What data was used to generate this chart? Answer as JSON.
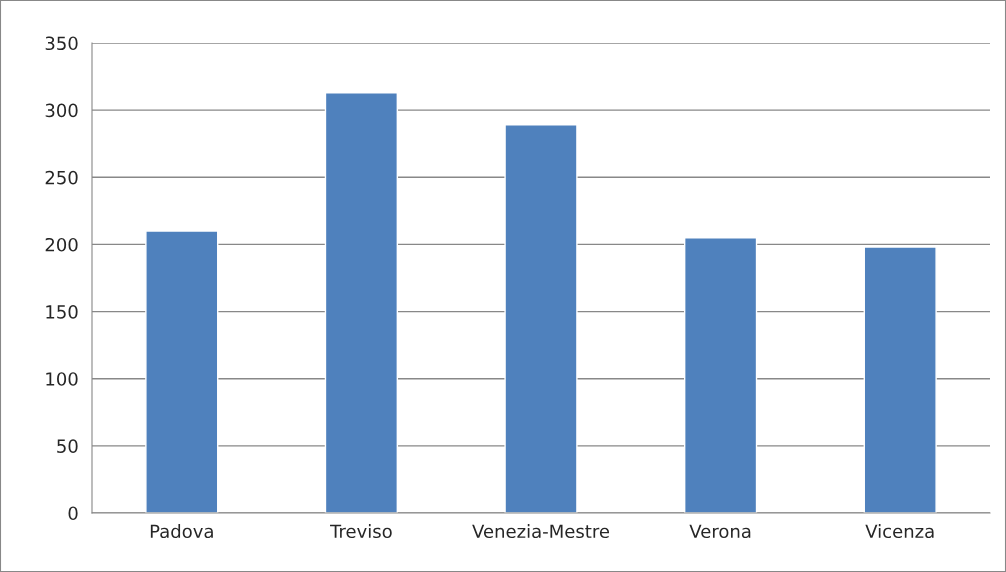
{
  "chart_data": {
    "type": "bar",
    "categories": [
      "Padova",
      "Treviso",
      "Venezia-Mestre",
      "Verona",
      "Vicenza"
    ],
    "values": [
      210,
      313,
      289,
      205,
      198
    ],
    "color": "#4f81bd",
    "ylim": [
      0,
      350
    ],
    "yticks": [
      0,
      50,
      100,
      150,
      200,
      250,
      300,
      350
    ],
    "grid": "y",
    "legend": false
  }
}
